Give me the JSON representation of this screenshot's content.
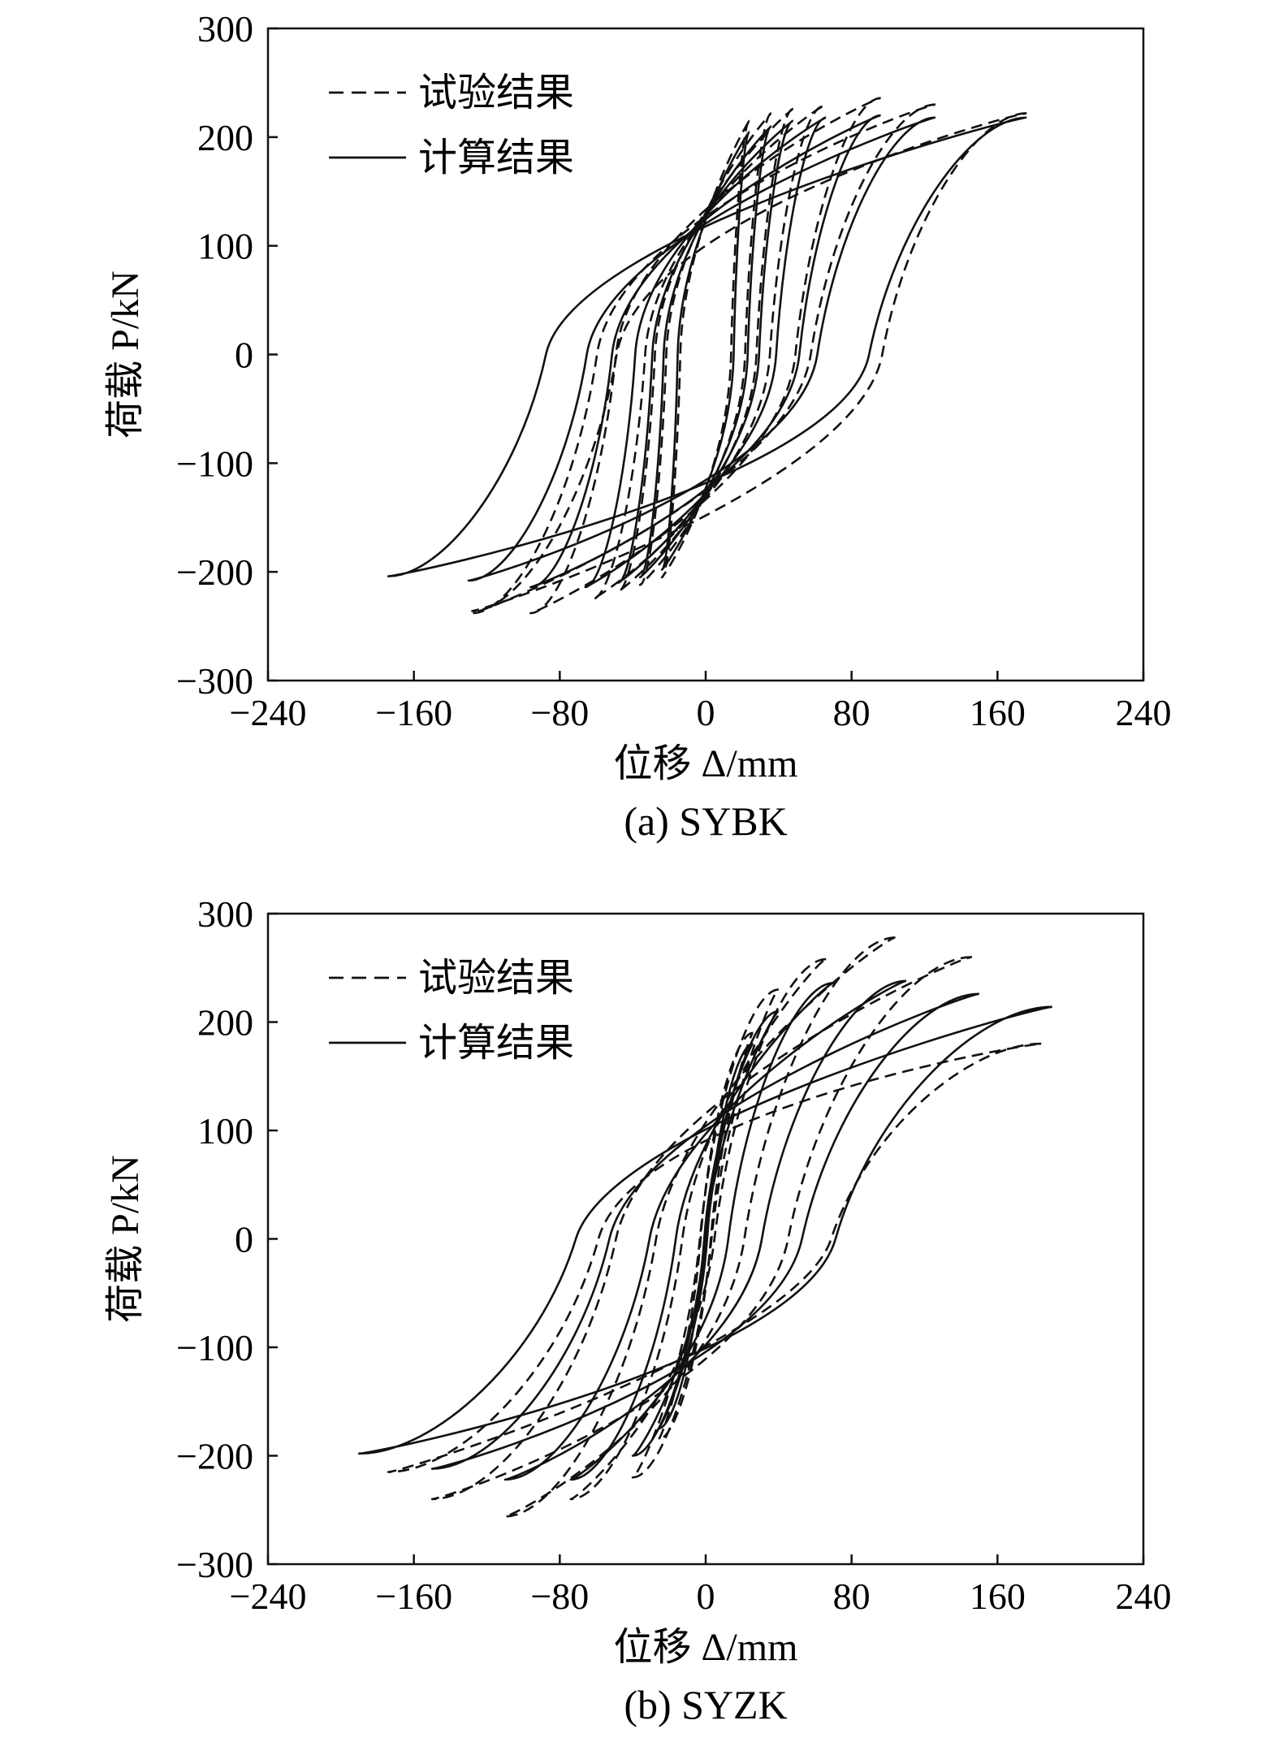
{
  "chart_data": [
    {
      "type": "line",
      "caption": "(a) SYBK",
      "xlabel": "位移 Δ/mm",
      "ylabel": "荷载 P/kN",
      "xlim": [
        -240,
        240
      ],
      "ylim": [
        -300,
        300
      ],
      "xticks": [
        "−240",
        "−160",
        "−80",
        "0",
        "80",
        "160",
        "240"
      ],
      "yticks": [
        "300",
        "200",
        "100",
        "0",
        "−100",
        "−200",
        "−300"
      ],
      "grid": false,
      "legend_position": "top-left",
      "series": [
        {
          "name": "试验结果",
          "style": "dashed",
          "loops": [
            {
              "pos": [
                24,
                215
              ],
              "neg": [
                -24,
                -205
              ],
              "open": 14
            },
            {
              "pos": [
                36,
                222
              ],
              "neg": [
                -36,
                -212
              ],
              "open": 20
            },
            {
              "pos": [
                48,
                226
              ],
              "neg": [
                -48,
                -218
              ],
              "open": 28
            },
            {
              "pos": [
                64,
                228
              ],
              "neg": [
                -62,
                -225
              ],
              "open": 40
            },
            {
              "pos": [
                96,
                236
              ],
              "neg": [
                -96,
                -238
              ],
              "open": 65
            },
            {
              "pos": [
                126,
                230
              ],
              "neg": [
                -128,
                -238
              ],
              "open": 95
            },
            {
              "pos": [
                176,
                222
              ],
              "neg": [
                -128,
                -236
              ],
              "open": 110
            }
          ]
        },
        {
          "name": "计算结果",
          "style": "solid",
          "loops": [
            {
              "pos": [
                24,
                205
              ],
              "neg": [
                -24,
                -198
              ],
              "open": 12
            },
            {
              "pos": [
                36,
                210
              ],
              "neg": [
                -36,
                -205
              ],
              "open": 18
            },
            {
              "pos": [
                48,
                215
              ],
              "neg": [
                -48,
                -210
              ],
              "open": 26
            },
            {
              "pos": [
                66,
                218
              ],
              "neg": [
                -66,
                -214
              ],
              "open": 38
            },
            {
              "pos": [
                96,
                220
              ],
              "neg": [
                -96,
                -214
              ],
              "open": 62
            },
            {
              "pos": [
                126,
                218
              ],
              "neg": [
                -130,
                -208
              ],
              "open": 90
            },
            {
              "pos": [
                176,
                218
              ],
              "neg": [
                -174,
                -204
              ],
              "open": 120
            }
          ]
        }
      ]
    },
    {
      "type": "line",
      "caption": "(b) SYZK",
      "xlabel": "位移 Δ/mm",
      "ylabel": "荷载 P/kN",
      "xlim": [
        -240,
        240
      ],
      "ylim": [
        -300,
        300
      ],
      "xticks": [
        "−240",
        "−160",
        "−80",
        "0",
        "80",
        "160",
        "240"
      ],
      "yticks": [
        "300",
        "200",
        "100",
        "0",
        "−100",
        "−200",
        "−300"
      ],
      "grid": false,
      "legend_position": "top-left",
      "series": [
        {
          "name": "试验结果",
          "style": "dashed",
          "loops": [
            {
              "pos": [
                26,
                190
              ],
              "neg": [
                -26,
                -185
              ],
              "open": 40
            },
            {
              "pos": [
                40,
                230
              ],
              "neg": [
                -40,
                -220
              ],
              "open": 60
            },
            {
              "pos": [
                66,
                258
              ],
              "neg": [
                -74,
                -240
              ],
              "open": 85
            },
            {
              "pos": [
                104,
                278
              ],
              "neg": [
                -110,
                -256
              ],
              "open": 115
            },
            {
              "pos": [
                146,
                260
              ],
              "neg": [
                -150,
                -240
              ],
              "open": 140
            },
            {
              "pos": [
                184,
                180
              ],
              "neg": [
                -174,
                -215
              ],
              "open": 160
            }
          ]
        },
        {
          "name": "计算结果",
          "style": "solid",
          "loops": [
            {
              "pos": [
                26,
                180
              ],
              "neg": [
                -26,
                -175
              ],
              "open": 35
            },
            {
              "pos": [
                40,
                210
              ],
              "neg": [
                -40,
                -200
              ],
              "open": 55
            },
            {
              "pos": [
                70,
                236
              ],
              "neg": [
                -74,
                -222
              ],
              "open": 80
            },
            {
              "pos": [
                110,
                238
              ],
              "neg": [
                -110,
                -222
              ],
              "open": 110
            },
            {
              "pos": [
                150,
                226
              ],
              "neg": [
                -150,
                -212
              ],
              "open": 135
            },
            {
              "pos": [
                190,
                214
              ],
              "neg": [
                -190,
                -198
              ],
              "open": 165
            }
          ]
        }
      ]
    }
  ]
}
